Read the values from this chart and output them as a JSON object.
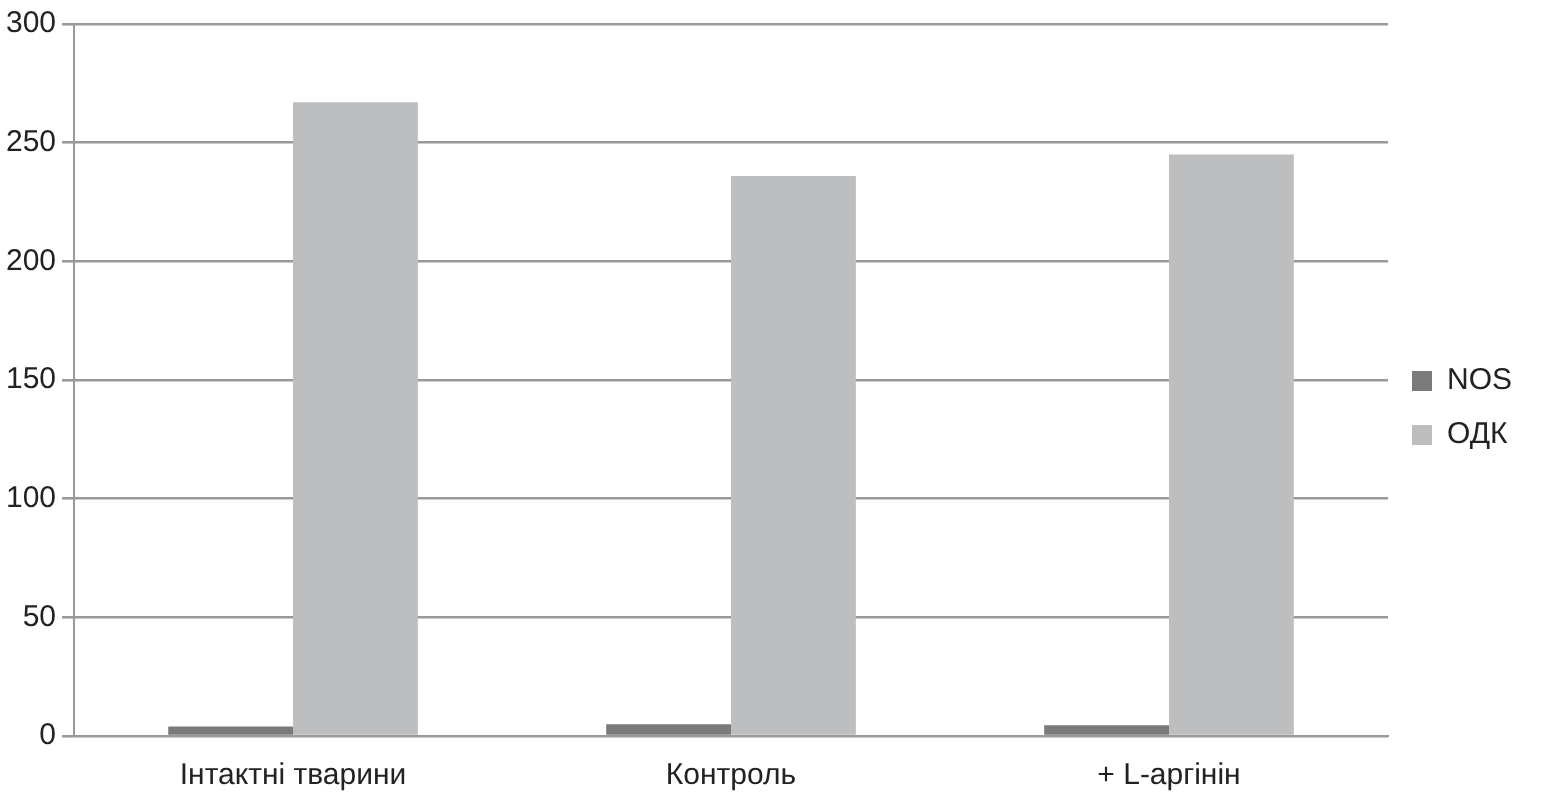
{
  "chart_data": {
    "type": "bar",
    "categories": [
      "Інтактні тварини",
      "Контроль",
      "+ L-аргінін"
    ],
    "series": [
      {
        "name": "NOS",
        "color": "#7a7a7a",
        "values": [
          4,
          5,
          4.5
        ]
      },
      {
        "name": "ОДК",
        "color": "#bdbec0",
        "values": [
          267,
          236,
          245
        ]
      }
    ],
    "ylim": [
      0,
      300
    ],
    "yticks": [
      0,
      50,
      100,
      150,
      200,
      250,
      300
    ],
    "grid": "y",
    "legend": "right"
  }
}
